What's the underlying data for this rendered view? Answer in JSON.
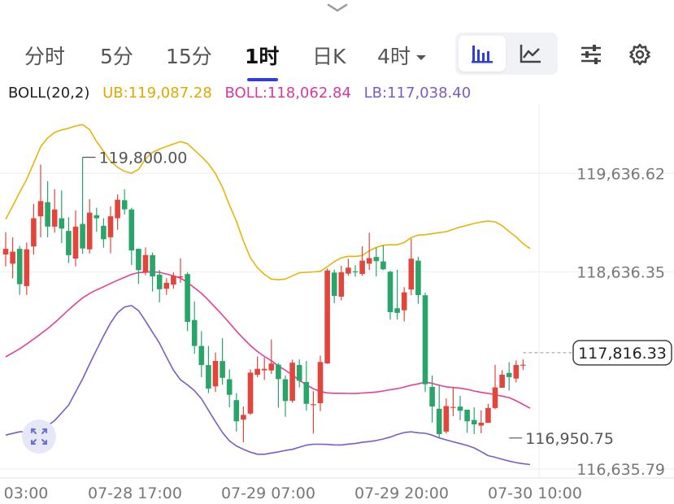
{
  "header": {
    "collapse_icon": "chevron-down-icon",
    "tabs": [
      {
        "label": "分时"
      },
      {
        "label": "5分"
      },
      {
        "label": "15分"
      },
      {
        "label": "1时",
        "active": true
      },
      {
        "label": "日K"
      },
      {
        "label": "4时",
        "dropdown": true
      }
    ],
    "chart_type_toggle": [
      "candlestick-icon",
      "line-chart-icon"
    ],
    "selected_chart_type": "candlestick-icon",
    "settings_icons": [
      "sliders-icon",
      "gear-icon"
    ]
  },
  "indicator": {
    "name": "BOLL(20,2)",
    "ub_label": "UB:119,087.28",
    "boll_label": "BOLL:118,062.84",
    "lb_label": "LB:117,038.40"
  },
  "colors": {
    "up": "#e2453c",
    "down": "#2aa56a",
    "ub": "#e5b50a",
    "mid": "#e0409a",
    "lb": "#7a5cc4",
    "accent": "#2f3de0",
    "label_ub": "#e0a800",
    "label_mid": "#d63aa0",
    "label_lb": "#7a5cc4"
  },
  "chart_data": {
    "type": "candlestick",
    "y_axis_labels": [
      "119,636.62",
      "118,636.35",
      "116,635.79"
    ],
    "y_axis_values": [
      119636.62,
      118636.35,
      116635.79
    ],
    "ylim": [
      116545,
      120340
    ],
    "x_axis_labels": [
      "03:00",
      "07-28 17:00",
      "07-29 07:00",
      "07-29 20:00",
      "07-30 10:00"
    ],
    "current_price": 117816.33,
    "current_price_label": "117,816.33",
    "annotations": [
      {
        "text": "119,800.00",
        "value": 119800.0,
        "candle": 11
      },
      {
        "text": "116,950.75",
        "value": 116950.75,
        "candle": 72
      }
    ],
    "candles": [
      [
        118814,
        118871,
        119040,
        118693
      ],
      [
        118720,
        118842,
        118988,
        118571
      ],
      [
        118871,
        118512,
        118900,
        118403
      ],
      [
        118493,
        118866,
        118934,
        118403
      ],
      [
        118895,
        119181,
        119326,
        118811
      ],
      [
        119201,
        119355,
        119725,
        118988
      ],
      [
        119344,
        119096,
        119556,
        118988
      ],
      [
        119096,
        119270,
        119476,
        119035
      ],
      [
        119181,
        119076,
        119463,
        118929
      ],
      [
        119052,
        118806,
        119192,
        118726
      ],
      [
        118772,
        119096,
        119260,
        118693
      ],
      [
        119123,
        118874,
        119800,
        118820
      ],
      [
        118866,
        119238,
        119375,
        118823
      ],
      [
        119212,
        119181,
        119288,
        119044
      ],
      [
        119104,
        118968,
        119181,
        118881
      ],
      [
        118988,
        119201,
        119302,
        118826
      ],
      [
        119181,
        119369,
        119423,
        119064
      ],
      [
        119364,
        119272,
        119476,
        119220
      ],
      [
        119270,
        118854,
        119288,
        118706
      ],
      [
        118871,
        118655,
        118874,
        118514
      ],
      [
        118632,
        118808,
        118884,
        118603
      ],
      [
        118806,
        118591,
        118832,
        118437
      ],
      [
        118608,
        118460,
        118655,
        118326
      ],
      [
        118466,
        118526,
        118573,
        118403
      ],
      [
        118508,
        118598,
        118632,
        118466
      ],
      [
        118585,
        118591,
        118774,
        118526
      ],
      [
        118614,
        118129,
        118632,
        118036
      ],
      [
        118148,
        117885,
        118337,
        117805
      ],
      [
        117885,
        117691,
        118036,
        117570
      ],
      [
        117691,
        117452,
        117885,
        117406
      ],
      [
        117475,
        117733,
        117819,
        117419
      ],
      [
        117731,
        117561,
        117963,
        117491
      ],
      [
        117547,
        117389,
        117646,
        117263
      ],
      [
        117335,
        117120,
        117406,
        117016
      ],
      [
        117136,
        117185,
        117269,
        116909
      ],
      [
        117198,
        117614,
        117646,
        117185
      ],
      [
        117593,
        117653,
        117778,
        117570
      ],
      [
        117637,
        117653,
        117768,
        117541
      ],
      [
        117637,
        117707,
        117950,
        117601
      ],
      [
        117695,
        117549,
        117710,
        117258
      ],
      [
        117547,
        117326,
        117586,
        117165
      ],
      [
        117329,
        117715,
        117746,
        117310
      ],
      [
        117692,
        117531,
        117749,
        117464
      ],
      [
        117519,
        117297,
        117733,
        117227
      ],
      [
        117288,
        117294,
        117427,
        116996
      ],
      [
        117304,
        117722,
        117788,
        117224
      ],
      [
        117707,
        118651,
        118671,
        117704
      ],
      [
        118630,
        118393,
        118660,
        118319
      ],
      [
        118385,
        118632,
        118698,
        118348
      ],
      [
        118619,
        118679,
        118770,
        118597
      ],
      [
        118642,
        118632,
        118706,
        118587
      ],
      [
        118616,
        118751,
        118897,
        118597
      ],
      [
        118720,
        118777,
        119035,
        118655
      ],
      [
        118788,
        118746,
        118884,
        118590
      ],
      [
        118743,
        118663,
        118905,
        118655
      ],
      [
        118638,
        118228,
        118649,
        118152
      ],
      [
        118268,
        118221,
        118658,
        118154
      ],
      [
        118247,
        118429,
        118481,
        118134
      ],
      [
        118458,
        118771,
        118973,
        118400
      ],
      [
        118751,
        118401,
        118790,
        118313
      ],
      [
        118400,
        117497,
        118427,
        117418
      ],
      [
        117470,
        117271,
        117585,
        117108
      ],
      [
        117248,
        116991,
        117492,
        116950.75
      ],
      [
        117016,
        117275,
        117353,
        116996
      ],
      [
        117260,
        117266,
        117464,
        117173
      ],
      [
        117269,
        117227,
        117379,
        117132
      ],
      [
        117238,
        117120,
        117227,
        117003
      ],
      [
        117133,
        117089,
        117263,
        116991
      ],
      [
        117076,
        117106,
        117231,
        116999
      ],
      [
        117104,
        117255,
        117297,
        117121
      ],
      [
        117255,
        117464,
        117692,
        117243
      ],
      [
        117461,
        117593,
        117639,
        117518
      ],
      [
        117612,
        117569,
        117720,
        117433
      ],
      [
        117554,
        117692,
        117739,
        117514
      ],
      [
        117685,
        117695,
        117749,
        117641
      ]
    ],
    "bands": {
      "ub": [
        [
          0,
          119171
        ],
        [
          1,
          119305
        ],
        [
          2,
          119445
        ],
        [
          3,
          119576
        ],
        [
          4,
          119740
        ],
        [
          5,
          119906
        ],
        [
          6,
          119995
        ],
        [
          7,
          120052
        ],
        [
          8,
          120078
        ],
        [
          9,
          120094
        ],
        [
          10,
          120117
        ],
        [
          11,
          120131
        ],
        [
          12,
          120081
        ],
        [
          13,
          119960
        ],
        [
          14,
          119860
        ],
        [
          15,
          119759
        ],
        [
          16,
          119699
        ],
        [
          17,
          119656
        ],
        [
          18,
          119639
        ],
        [
          19,
          119677
        ],
        [
          20,
          119785
        ],
        [
          21,
          119849
        ],
        [
          22,
          119882
        ],
        [
          23,
          119910
        ],
        [
          24,
          119935
        ],
        [
          25,
          119958
        ],
        [
          26,
          119938
        ],
        [
          27,
          119872
        ],
        [
          28,
          119806
        ],
        [
          29,
          119734
        ],
        [
          30,
          119634
        ],
        [
          31,
          119496
        ],
        [
          32,
          119315
        ],
        [
          33,
          119150
        ],
        [
          34,
          118950
        ],
        [
          35,
          118780
        ],
        [
          36,
          118679
        ],
        [
          37,
          118612
        ],
        [
          38,
          118564
        ],
        [
          39,
          118557
        ],
        [
          40,
          118564
        ],
        [
          41,
          118597
        ],
        [
          42,
          118627
        ],
        [
          43,
          118632
        ],
        [
          44,
          118636
        ],
        [
          45,
          118642
        ],
        [
          46,
          118690
        ],
        [
          47,
          118740
        ],
        [
          48,
          118780
        ],
        [
          49,
          118795
        ],
        [
          50,
          118794
        ],
        [
          51,
          118803
        ],
        [
          52,
          118852
        ],
        [
          53,
          118885
        ],
        [
          54,
          118907
        ],
        [
          55,
          118912
        ],
        [
          56,
          118912
        ],
        [
          57,
          118935
        ],
        [
          58,
          118985
        ],
        [
          59,
          119010
        ],
        [
          60,
          119014
        ],
        [
          61,
          119025
        ],
        [
          62,
          119035
        ],
        [
          63,
          119045
        ],
        [
          64,
          119069
        ],
        [
          65,
          119092
        ],
        [
          66,
          119109
        ],
        [
          67,
          119128
        ],
        [
          68,
          119143
        ],
        [
          69,
          119153
        ],
        [
          70,
          119144
        ],
        [
          71,
          119106
        ],
        [
          72,
          119046
        ],
        [
          73,
          118991
        ],
        [
          74,
          118923
        ],
        [
          75,
          118873
        ]
      ],
      "mid": [
        [
          0,
          117774
        ],
        [
          1,
          117815
        ],
        [
          2,
          117856
        ],
        [
          3,
          117904
        ],
        [
          4,
          117955
        ],
        [
          5,
          118007
        ],
        [
          6,
          118061
        ],
        [
          7,
          118121
        ],
        [
          8,
          118185
        ],
        [
          9,
          118252
        ],
        [
          10,
          118315
        ],
        [
          11,
          118372
        ],
        [
          12,
          118417
        ],
        [
          13,
          118454
        ],
        [
          14,
          118485
        ],
        [
          15,
          118519
        ],
        [
          16,
          118551
        ],
        [
          17,
          118582
        ],
        [
          18,
          118612
        ],
        [
          19,
          118629
        ],
        [
          20,
          118634
        ],
        [
          21,
          118637
        ],
        [
          22,
          118632
        ],
        [
          23,
          118615
        ],
        [
          24,
          118596
        ],
        [
          25,
          118574
        ],
        [
          26,
          118530
        ],
        [
          27,
          118475
        ],
        [
          28,
          118419
        ],
        [
          29,
          118349
        ],
        [
          30,
          118274
        ],
        [
          31,
          118198
        ],
        [
          32,
          118118
        ],
        [
          33,
          118036
        ],
        [
          34,
          117960
        ],
        [
          35,
          117889
        ],
        [
          36,
          117829
        ],
        [
          37,
          117778
        ],
        [
          38,
          117735
        ],
        [
          39,
          117683
        ],
        [
          40,
          117638
        ],
        [
          41,
          117590
        ],
        [
          42,
          117537
        ],
        [
          43,
          117490
        ],
        [
          44,
          117451
        ],
        [
          45,
          117422
        ],
        [
          46,
          117409
        ],
        [
          47,
          117405
        ],
        [
          48,
          117405
        ],
        [
          49,
          117403
        ],
        [
          50,
          117402
        ],
        [
          51,
          117407
        ],
        [
          52,
          117412
        ],
        [
          53,
          117417
        ],
        [
          54,
          117428
        ],
        [
          55,
          117441
        ],
        [
          56,
          117452
        ],
        [
          57,
          117468
        ],
        [
          58,
          117487
        ],
        [
          59,
          117500
        ],
        [
          60,
          117518
        ],
        [
          61,
          117505
        ],
        [
          62,
          117486
        ],
        [
          63,
          117470
        ],
        [
          64,
          117463
        ],
        [
          65,
          117456
        ],
        [
          66,
          117445
        ],
        [
          67,
          117428
        ],
        [
          68,
          117414
        ],
        [
          69,
          117404
        ],
        [
          70,
          117391
        ],
        [
          71,
          117376
        ],
        [
          72,
          117361
        ],
        [
          73,
          117329
        ],
        [
          74,
          117292
        ],
        [
          75,
          117253
        ]
      ],
      "lb": [
        [
          0,
          116981
        ],
        [
          1,
          116997
        ],
        [
          2,
          117014
        ],
        [
          3,
          117015
        ],
        [
          4,
          117020
        ],
        [
          5,
          117044
        ],
        [
          6,
          117074
        ],
        [
          7,
          117128
        ],
        [
          8,
          117205
        ],
        [
          9,
          117284
        ],
        [
          10,
          117418
        ],
        [
          11,
          117551
        ],
        [
          12,
          117701
        ],
        [
          13,
          117846
        ],
        [
          14,
          117987
        ],
        [
          15,
          118118
        ],
        [
          16,
          118222
        ],
        [
          17,
          118281
        ],
        [
          18,
          118295
        ],
        [
          19,
          118244
        ],
        [
          20,
          118138
        ],
        [
          21,
          118024
        ],
        [
          22,
          117913
        ],
        [
          23,
          117773
        ],
        [
          24,
          117638
        ],
        [
          25,
          117542
        ],
        [
          26,
          117490
        ],
        [
          27,
          117431
        ],
        [
          28,
          117349
        ],
        [
          29,
          117232
        ],
        [
          30,
          117117
        ],
        [
          31,
          117007
        ],
        [
          32,
          116921
        ],
        [
          33,
          116870
        ],
        [
          34,
          116836
        ],
        [
          35,
          116807
        ],
        [
          36,
          116786
        ],
        [
          37,
          116786
        ],
        [
          38,
          116798
        ],
        [
          39,
          116810
        ],
        [
          40,
          116825
        ],
        [
          41,
          116835
        ],
        [
          42,
          116858
        ],
        [
          43,
          116878
        ],
        [
          44,
          116887
        ],
        [
          45,
          116887
        ],
        [
          46,
          116886
        ],
        [
          47,
          116881
        ],
        [
          48,
          116880
        ],
        [
          49,
          116889
        ],
        [
          50,
          116895
        ],
        [
          51,
          116907
        ],
        [
          52,
          116915
        ],
        [
          53,
          116925
        ],
        [
          54,
          116941
        ],
        [
          55,
          116960
        ],
        [
          56,
          116986
        ],
        [
          57,
          117006
        ],
        [
          58,
          117014
        ],
        [
          59,
          117004
        ],
        [
          60,
          116999
        ],
        [
          61,
          116980
        ],
        [
          62,
          116952
        ],
        [
          63,
          116932
        ],
        [
          64,
          116912
        ],
        [
          65,
          116894
        ],
        [
          66,
          116875
        ],
        [
          67,
          116850
        ],
        [
          68,
          116812
        ],
        [
          69,
          116772
        ],
        [
          70,
          116755
        ],
        [
          71,
          116735
        ],
        [
          72,
          116717
        ],
        [
          73,
          116701
        ],
        [
          74,
          116690
        ],
        [
          75,
          116681
        ]
      ]
    }
  }
}
